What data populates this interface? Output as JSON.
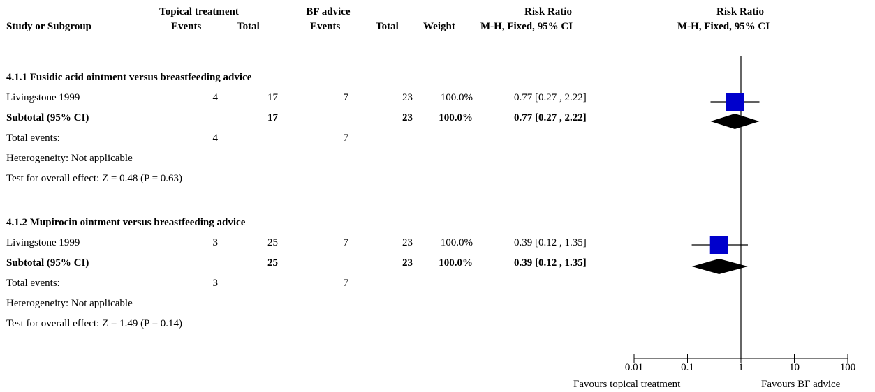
{
  "header": {
    "group1": "Topical treatment",
    "group2": "BF advice",
    "rr_top_left": "Risk Ratio",
    "rr_top_right": "Risk Ratio",
    "col_study": "Study or Subgroup",
    "col_events1": "Events",
    "col_total1": "Total",
    "col_events2": "Events",
    "col_total2": "Total",
    "col_weight": "Weight",
    "col_method_left": "M-H, Fixed, 95% CI",
    "col_method_right": "M-H, Fixed, 95% CI"
  },
  "subgroups": [
    {
      "title": "4.1.1 Fusidic acid ointment versus breastfeeding advice",
      "study": {
        "name": "Livingstone 1999",
        "events1": "4",
        "total1": "17",
        "events2": "7",
        "total2": "23",
        "weight": "100.0%",
        "ci_text": "0.77 [0.27 , 2.22]"
      },
      "subtotal": {
        "label": "Subtotal (95% CI)",
        "total1": "17",
        "total2": "23",
        "weight": "100.0%",
        "ci_text": "0.77 [0.27 , 2.22]"
      },
      "total_events": {
        "label": "Total events:",
        "events1": "4",
        "events2": "7"
      },
      "heterogeneity": "Heterogeneity: Not applicable",
      "overall_effect": "Test for overall effect: Z = 0.48 (P = 0.63)"
    },
    {
      "title": "4.1.2 Mupirocin ointment versus breastfeeding advice",
      "study": {
        "name": "Livingstone 1999",
        "events1": "3",
        "total1": "25",
        "events2": "7",
        "total2": "23",
        "weight": "100.0%",
        "ci_text": "0.39 [0.12 , 1.35]"
      },
      "subtotal": {
        "label": "Subtotal (95% CI)",
        "total1": "25",
        "total2": "23",
        "weight": "100.0%",
        "ci_text": "0.39 [0.12 , 1.35]"
      },
      "total_events": {
        "label": "Total events:",
        "events1": "3",
        "events2": "7"
      },
      "heterogeneity": "Heterogeneity: Not applicable",
      "overall_effect": "Test for overall effect: Z = 1.49 (P = 0.14)"
    }
  ],
  "axis": {
    "tick_labels": [
      "0.01",
      "0.1",
      "1",
      "10",
      "100"
    ],
    "favours_left": "Favours topical treatment",
    "favours_right": "Favours BF advice"
  },
  "chart_data": {
    "type": "forest",
    "scale": "log",
    "xlim": [
      0.01,
      100
    ],
    "ticks": [
      0.01,
      0.1,
      1,
      10,
      100
    ],
    "null_line": 1,
    "studies": [
      {
        "name": "Livingstone 1999",
        "subgroup": "4.1.1",
        "rr": 0.77,
        "ci": [
          0.27,
          2.22
        ],
        "weight": 100.0
      },
      {
        "name": "Livingstone 1999",
        "subgroup": "4.1.2",
        "rr": 0.39,
        "ci": [
          0.12,
          1.35
        ],
        "weight": 100.0
      }
    ],
    "subtotals": [
      {
        "subgroup": "4.1.1",
        "rr": 0.77,
        "ci": [
          0.27,
          2.22
        ]
      },
      {
        "subgroup": "4.1.2",
        "rr": 0.39,
        "ci": [
          0.12,
          1.35
        ]
      }
    ],
    "colors": {
      "square": "#0000cc",
      "diamond": "#000000",
      "lines": "#000000"
    }
  }
}
